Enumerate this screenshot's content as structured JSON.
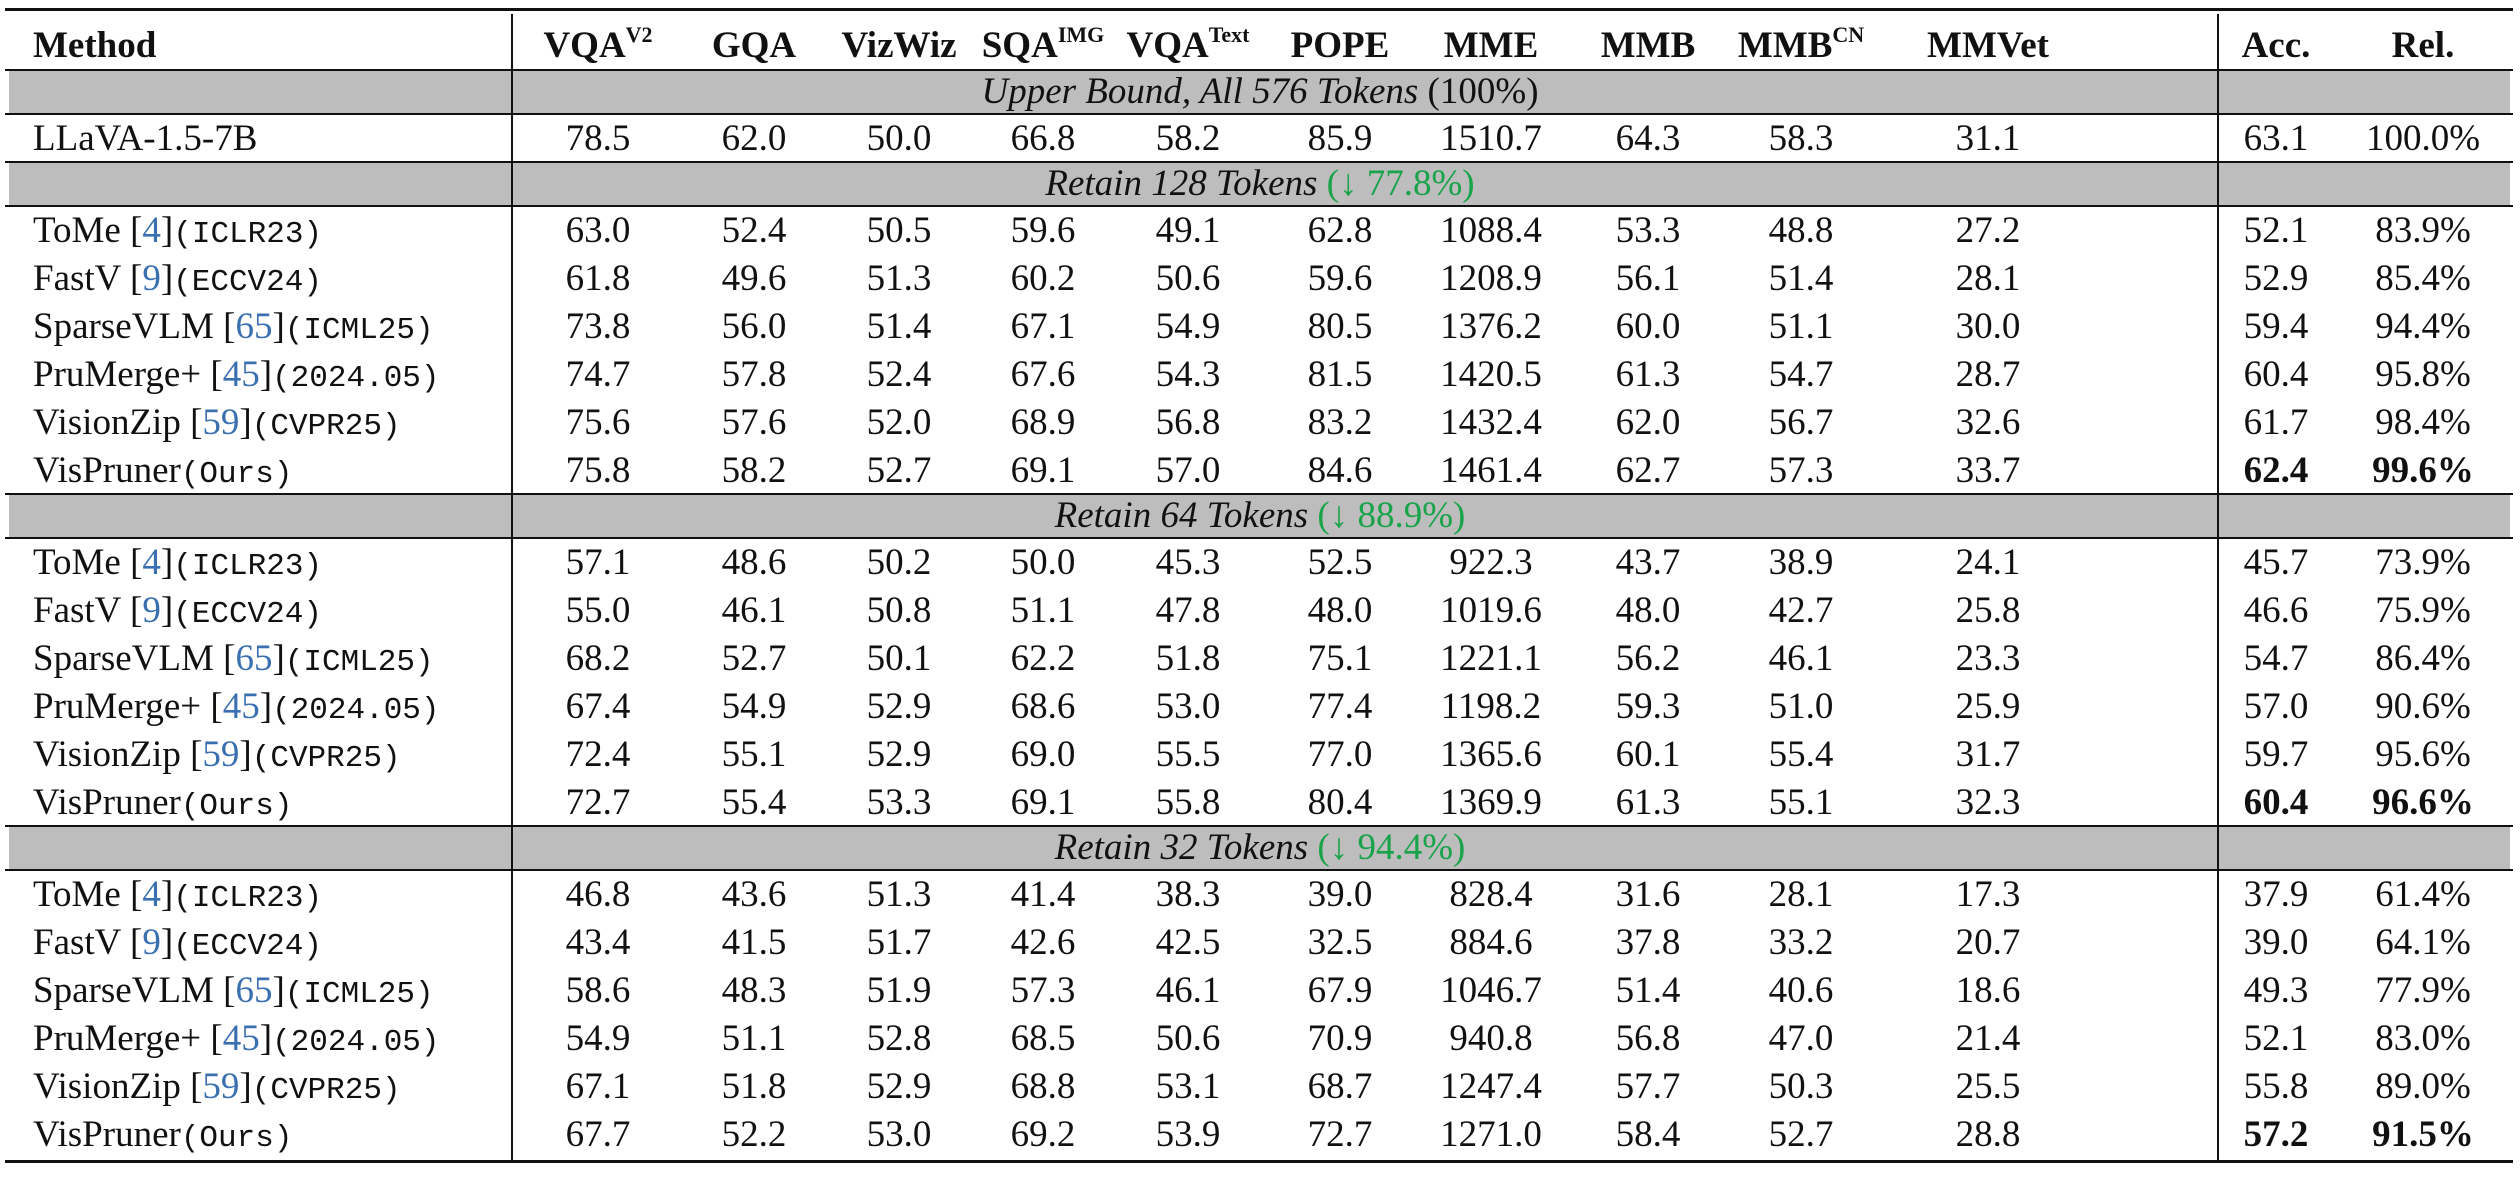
{
  "table": {
    "headers": [
      {
        "key": "method",
        "label": "Method",
        "sup": ""
      },
      {
        "key": "vqav2",
        "label": "VQA",
        "sup": "V2"
      },
      {
        "key": "gqa",
        "label": "GQA",
        "sup": ""
      },
      {
        "key": "vizwiz",
        "label": "VizWiz",
        "sup": ""
      },
      {
        "key": "sqaimg",
        "label": "SQA",
        "sup": "IMG"
      },
      {
        "key": "vqatext",
        "label": "VQA",
        "sup": "Text"
      },
      {
        "key": "pope",
        "label": "POPE",
        "sup": ""
      },
      {
        "key": "mme",
        "label": "MME",
        "sup": ""
      },
      {
        "key": "mmb",
        "label": "MMB",
        "sup": ""
      },
      {
        "key": "mmbcn",
        "label": "MMB",
        "sup": "CN"
      },
      {
        "key": "mmvet",
        "label": "MMVet",
        "sup": ""
      },
      {
        "key": "acc",
        "label": "Acc.",
        "sup": ""
      },
      {
        "key": "rel",
        "label": "Rel.",
        "sup": ""
      }
    ],
    "sections": [
      {
        "title": "Upper Bound, All 576 Tokens",
        "reduction": "(100%)",
        "reduction_style": "bold",
        "rows": [
          {
            "name": "LLaVA-1.5-7B",
            "ref": "",
            "venue": "",
            "values": [
              "78.5",
              "62.0",
              "50.0",
              "66.8",
              "58.2",
              "85.9",
              "1510.7",
              "64.3",
              "58.3",
              "31.1"
            ],
            "acc": "63.1",
            "rel": "100.0%",
            "best": false
          }
        ]
      },
      {
        "title": "Retain 128 Tokens",
        "reduction": "(↓ 77.8%)",
        "reduction_style": "green",
        "rows": [
          {
            "name": "ToMe",
            "ref": "4",
            "venue": "(ICLR23)",
            "values": [
              "63.0",
              "52.4",
              "50.5",
              "59.6",
              "49.1",
              "62.8",
              "1088.4",
              "53.3",
              "48.8",
              "27.2"
            ],
            "acc": "52.1",
            "rel": "83.9%",
            "best": false
          },
          {
            "name": "FastV",
            "ref": "9",
            "venue": "(ECCV24)",
            "values": [
              "61.8",
              "49.6",
              "51.3",
              "60.2",
              "50.6",
              "59.6",
              "1208.9",
              "56.1",
              "51.4",
              "28.1"
            ],
            "acc": "52.9",
            "rel": "85.4%",
            "best": false
          },
          {
            "name": "SparseVLM",
            "ref": "65",
            "venue": "(ICML25)",
            "values": [
              "73.8",
              "56.0",
              "51.4",
              "67.1",
              "54.9",
              "80.5",
              "1376.2",
              "60.0",
              "51.1",
              "30.0"
            ],
            "acc": "59.4",
            "rel": "94.4%",
            "best": false
          },
          {
            "name": "PruMerge+",
            "ref": "45",
            "venue": "(2024.05)",
            "values": [
              "74.7",
              "57.8",
              "52.4",
              "67.6",
              "54.3",
              "81.5",
              "1420.5",
              "61.3",
              "54.7",
              "28.7"
            ],
            "acc": "60.4",
            "rel": "95.8%",
            "best": false
          },
          {
            "name": "VisionZip",
            "ref": "59",
            "venue": "(CVPR25)",
            "values": [
              "75.6",
              "57.6",
              "52.0",
              "68.9",
              "56.8",
              "83.2",
              "1432.4",
              "62.0",
              "56.7",
              "32.6"
            ],
            "acc": "61.7",
            "rel": "98.4%",
            "best": false
          },
          {
            "name": "VisPruner",
            "ref": "",
            "venue": "(Ours)",
            "values": [
              "75.8",
              "58.2",
              "52.7",
              "69.1",
              "57.0",
              "84.6",
              "1461.4",
              "62.7",
              "57.3",
              "33.7"
            ],
            "acc": "62.4",
            "rel": "99.6%",
            "best": true
          }
        ]
      },
      {
        "title": "Retain 64 Tokens",
        "reduction": "(↓ 88.9%)",
        "reduction_style": "green",
        "rows": [
          {
            "name": "ToMe",
            "ref": "4",
            "venue": "(ICLR23)",
            "values": [
              "57.1",
              "48.6",
              "50.2",
              "50.0",
              "45.3",
              "52.5",
              "922.3",
              "43.7",
              "38.9",
              "24.1"
            ],
            "acc": "45.7",
            "rel": "73.9%",
            "best": false
          },
          {
            "name": "FastV",
            "ref": "9",
            "venue": "(ECCV24)",
            "values": [
              "55.0",
              "46.1",
              "50.8",
              "51.1",
              "47.8",
              "48.0",
              "1019.6",
              "48.0",
              "42.7",
              "25.8"
            ],
            "acc": "46.6",
            "rel": "75.9%",
            "best": false
          },
          {
            "name": "SparseVLM",
            "ref": "65",
            "venue": "(ICML25)",
            "values": [
              "68.2",
              "52.7",
              "50.1",
              "62.2",
              "51.8",
              "75.1",
              "1221.1",
              "56.2",
              "46.1",
              "23.3"
            ],
            "acc": "54.7",
            "rel": "86.4%",
            "best": false
          },
          {
            "name": "PruMerge+",
            "ref": "45",
            "venue": "(2024.05)",
            "values": [
              "67.4",
              "54.9",
              "52.9",
              "68.6",
              "53.0",
              "77.4",
              "1198.2",
              "59.3",
              "51.0",
              "25.9"
            ],
            "acc": "57.0",
            "rel": "90.6%",
            "best": false
          },
          {
            "name": "VisionZip",
            "ref": "59",
            "venue": "(CVPR25)",
            "values": [
              "72.4",
              "55.1",
              "52.9",
              "69.0",
              "55.5",
              "77.0",
              "1365.6",
              "60.1",
              "55.4",
              "31.7"
            ],
            "acc": "59.7",
            "rel": "95.6%",
            "best": false
          },
          {
            "name": "VisPruner",
            "ref": "",
            "venue": "(Ours)",
            "values": [
              "72.7",
              "55.4",
              "53.3",
              "69.1",
              "55.8",
              "80.4",
              "1369.9",
              "61.3",
              "55.1",
              "32.3"
            ],
            "acc": "60.4",
            "rel": "96.6%",
            "best": true
          }
        ]
      },
      {
        "title": "Retain 32 Tokens",
        "reduction": "(↓ 94.4%)",
        "reduction_style": "green",
        "rows": [
          {
            "name": "ToMe",
            "ref": "4",
            "venue": "(ICLR23)",
            "values": [
              "46.8",
              "43.6",
              "51.3",
              "41.4",
              "38.3",
              "39.0",
              "828.4",
              "31.6",
              "28.1",
              "17.3"
            ],
            "acc": "37.9",
            "rel": "61.4%",
            "best": false
          },
          {
            "name": "FastV",
            "ref": "9",
            "venue": "(ECCV24)",
            "values": [
              "43.4",
              "41.5",
              "51.7",
              "42.6",
              "42.5",
              "32.5",
              "884.6",
              "37.8",
              "33.2",
              "20.7"
            ],
            "acc": "39.0",
            "rel": "64.1%",
            "best": false
          },
          {
            "name": "SparseVLM",
            "ref": "65",
            "venue": "(ICML25)",
            "values": [
              "58.6",
              "48.3",
              "51.9",
              "57.3",
              "46.1",
              "67.9",
              "1046.7",
              "51.4",
              "40.6",
              "18.6"
            ],
            "acc": "49.3",
            "rel": "77.9%",
            "best": false
          },
          {
            "name": "PruMerge+",
            "ref": "45",
            "venue": "(2024.05)",
            "values": [
              "54.9",
              "51.1",
              "52.8",
              "68.5",
              "50.6",
              "70.9",
              "940.8",
              "56.8",
              "47.0",
              "21.4"
            ],
            "acc": "52.1",
            "rel": "83.0%",
            "best": false
          },
          {
            "name": "VisionZip",
            "ref": "59",
            "venue": "(CVPR25)",
            "values": [
              "67.1",
              "51.8",
              "52.9",
              "68.8",
              "53.1",
              "68.7",
              "1247.4",
              "57.7",
              "50.3",
              "25.5"
            ],
            "acc": "55.8",
            "rel": "89.0%",
            "best": false
          },
          {
            "name": "VisPruner",
            "ref": "",
            "venue": "(Ours)",
            "values": [
              "67.7",
              "52.2",
              "53.0",
              "69.2",
              "53.9",
              "72.7",
              "1271.0",
              "58.4",
              "52.7",
              "28.8"
            ],
            "acc": "57.2",
            "rel": "91.5%",
            "best": true
          }
        ]
      }
    ],
    "colors": {
      "reduction_green": "#19a34a",
      "citation_blue": "#3a6fb0",
      "section_band": "#bdbdbd"
    }
  }
}
